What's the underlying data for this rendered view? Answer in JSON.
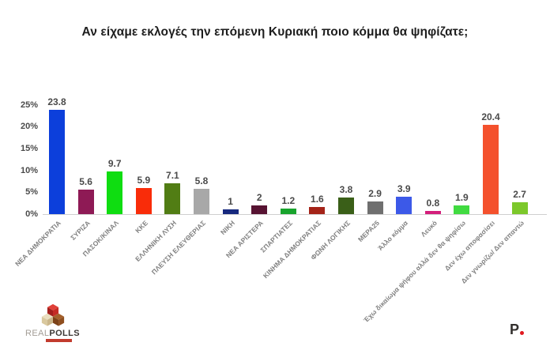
{
  "title": "Αν είχαμε εκλογές την επόμενη Κυριακή ποιο κόμμα θα ψηφίζατε;",
  "chart_data": {
    "type": "bar",
    "title": "Αν είχαμε εκλογές την επόμενη Κυριακή ποιο κόμμα θα ψηφίζατε;",
    "categories": [
      "ΝΕΑ ΔΗΜΟΚΡΑΤΙΑ",
      "ΣΥΡΙΖΑ",
      "ΠΑΣΟΚ/ΚΙΝΑΛ",
      "ΚΚΕ",
      "ΕΛΛΗΝΙΚΗ ΛΥΣΗ",
      "ΠΛΕΥΣΗ ΕΛΕΥΘΕΡΙΑΣ",
      "ΝΙΚΗ",
      "ΝΕΑ ΑΡΙΣΤΕΡΑ",
      "ΣΠΑΡΤΙΑΤΕΣ",
      "ΚΙΝΗΜΑ ΔΗΜΟΚΡΑΤΙΑΣ",
      "ΦΩΝΗ ΛΟΓΙΚΗΣ",
      "ΜΕΡΑ25",
      "Άλλο κόμμα",
      "Λευκό",
      "Έχω δικαίωμα ψήφου αλλά δεν θα ψηφίσω",
      "Δεν έχω αποφασίσει",
      "Δεν γνωρίζω/ Δεν απαντώ"
    ],
    "values": [
      23.8,
      5.6,
      9.7,
      5.9,
      7.1,
      5.8,
      1,
      2,
      1.2,
      1.6,
      3.8,
      2.9,
      3.9,
      0.8,
      1.9,
      20.4,
      2.7
    ],
    "value_labels": [
      "23.8",
      "5.6",
      "9.7",
      "5.9",
      "7.1",
      "5.8",
      "1",
      "2",
      "1.2",
      "1.6",
      "3.8",
      "2.9",
      "3.9",
      "0.8",
      "1.9",
      "20.4",
      "2.7"
    ],
    "bar_colors": [
      "#0c3fdb",
      "#8e1a55",
      "#0fdd11",
      "#f92c09",
      "#517d14",
      "#a8a8a8",
      "#16297e",
      "#571332",
      "#18a42d",
      "#a42318",
      "#3a5f18",
      "#6f6f6f",
      "#3c59e8",
      "#d41e7b",
      "#41db41",
      "#f4512d",
      "#7cc82b"
    ],
    "y_ticks": {
      "values": [
        0,
        5,
        10,
        15,
        20,
        25
      ],
      "labels": [
        "0%",
        "5%",
        "10%",
        "15%",
        "20%",
        "25%"
      ]
    },
    "ylim": [
      0,
      25
    ],
    "xlabel": "",
    "ylabel": "",
    "grid": false,
    "legend": false
  },
  "footer": {
    "left_logo": {
      "name": "REALPOLLS",
      "text_light": "REAL",
      "text_bold": "POLLS"
    },
    "right_logo": {
      "letter": "P"
    }
  }
}
